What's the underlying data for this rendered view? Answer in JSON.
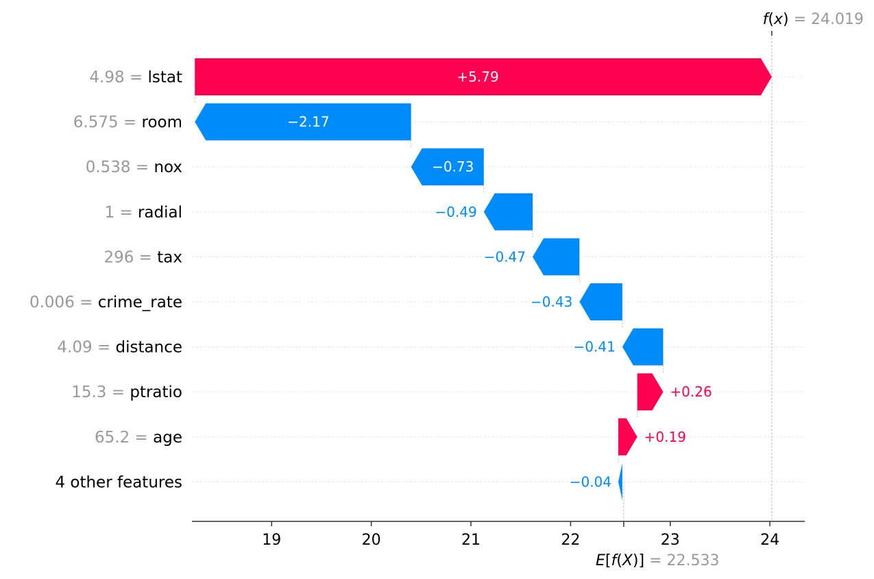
{
  "chart_data": {
    "type": "waterfall",
    "fx": {
      "prefix": "f",
      "paren_open": "(",
      "var": "x",
      "paren_close": ")",
      "equals": " = ",
      "value": "24.019"
    },
    "efx": {
      "prefix": "E",
      "open": "[",
      "f": "f",
      "paren_open": "(",
      "var": "X",
      "paren_close": ")",
      "close": "]",
      "equals": " = ",
      "value": "22.533"
    },
    "fx_value": 24.019,
    "base_value": 22.533,
    "xlim": [
      18.2,
      24.35
    ],
    "xticks": [
      19,
      20,
      21,
      22,
      23,
      24
    ],
    "colors": {
      "positive": "#ff0051",
      "negative": "#008bfb",
      "value_text": "#999999",
      "axis": "#333333",
      "grid": "#e6e6e6"
    },
    "features": [
      {
        "value": "4.98",
        "name": "lstat",
        "shap": 5.79,
        "label": "+5.79"
      },
      {
        "value": "6.575",
        "name": "room",
        "shap": -2.17,
        "label": "−2.17"
      },
      {
        "value": "0.538",
        "name": "nox",
        "shap": -0.73,
        "label": "−0.73"
      },
      {
        "value": "1",
        "name": "radial",
        "shap": -0.49,
        "label": "−0.49"
      },
      {
        "value": "296",
        "name": "tax",
        "shap": -0.47,
        "label": "−0.47"
      },
      {
        "value": "0.006",
        "name": "crime_rate",
        "shap": -0.43,
        "label": "−0.43"
      },
      {
        "value": "4.09",
        "name": "distance",
        "shap": -0.41,
        "label": "−0.41"
      },
      {
        "value": "15.3",
        "name": "ptratio",
        "shap": 0.26,
        "label": "+0.26"
      },
      {
        "value": "65.2",
        "name": "age",
        "shap": 0.19,
        "label": "+0.19"
      },
      {
        "value": "",
        "name": "4 other features",
        "shap": -0.04,
        "label": "−0.04"
      }
    ]
  }
}
